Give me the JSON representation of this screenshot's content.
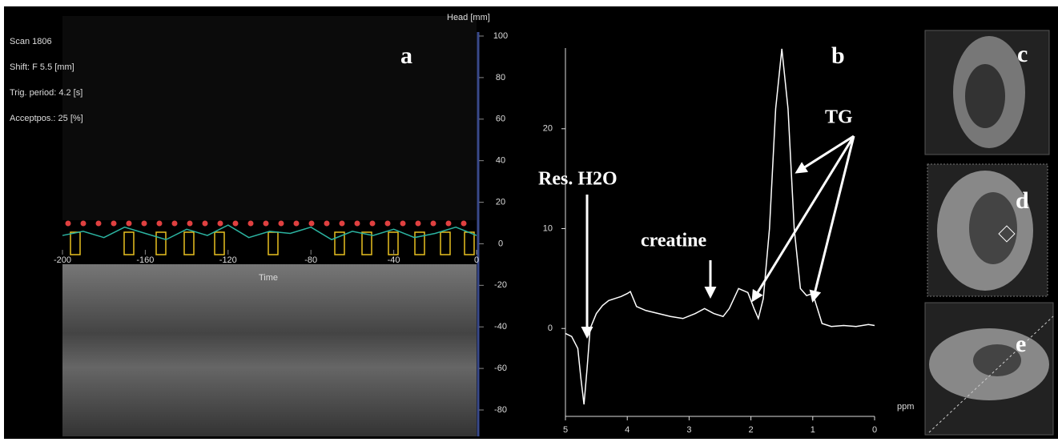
{
  "chart_data": [
    {
      "type": "line",
      "panel_label": "a",
      "info": [
        "Scan 1806",
        "Shift: F 5.5 [mm]",
        "Trig. period: 4.2 [s]",
        "Acceptpos.: 25 [%]"
      ],
      "y_label": "Head [mm]",
      "x_label": "Time",
      "xlim": [
        -200,
        0
      ],
      "xticks": [
        -200,
        -160,
        -120,
        -80,
        -40,
        0
      ],
      "ylim": [
        -80,
        100
      ],
      "yticks": [
        100,
        80,
        60,
        40,
        20,
        0,
        -20,
        -40,
        -60,
        -80
      ],
      "series": [
        {
          "color": "#2bb3a0",
          "x": [
            -200,
            -190,
            -180,
            -170,
            -160,
            -150,
            -140,
            -130,
            -120,
            -110,
            -100,
            -90,
            -80,
            -70,
            -60,
            -50,
            -40,
            -30,
            -20,
            -10,
            0
          ],
          "values": [
            4,
            6,
            3,
            8,
            5,
            2,
            7,
            4,
            9,
            3,
            6,
            5,
            8,
            2,
            6,
            4,
            7,
            3,
            5,
            8,
            4
          ]
        }
      ]
    },
    {
      "type": "line",
      "panel_label": "b",
      "x_label": "ppm",
      "xlim": [
        5,
        0
      ],
      "xticks": [
        5,
        4,
        3,
        2,
        1,
        0
      ],
      "ylim": [
        -8.8,
        28
      ],
      "yticks": [
        0,
        10,
        20
      ],
      "annotations": [
        "Res. H2O",
        "creatine",
        "TG"
      ],
      "color": "#ffffff",
      "x": [
        5.0,
        4.9,
        4.8,
        4.75,
        4.7,
        4.65,
        4.6,
        4.5,
        4.4,
        4.3,
        4.2,
        4.1,
        4.0,
        3.95,
        3.85,
        3.7,
        3.5,
        3.3,
        3.1,
        2.9,
        2.75,
        2.6,
        2.45,
        2.35,
        2.2,
        2.05,
        1.95,
        1.88,
        1.8,
        1.7,
        1.6,
        1.5,
        1.4,
        1.3,
        1.2,
        1.1,
        1.0,
        0.95,
        0.85,
        0.7,
        0.5,
        0.3,
        0.1,
        0.0
      ],
      "values": [
        -0.5,
        -0.8,
        -2,
        -5,
        -7.6,
        -4,
        0,
        1.5,
        2.3,
        2.8,
        3,
        3.2,
        3.5,
        3.7,
        2.2,
        1.8,
        1.5,
        1.2,
        1.0,
        1.5,
        2.0,
        1.5,
        1.2,
        2.0,
        4.0,
        3.6,
        2.0,
        1.0,
        3,
        10,
        22,
        28,
        22,
        10,
        4,
        3.3,
        3.5,
        2.5,
        0.5,
        0.2,
        0.3,
        0.2,
        0.4,
        0.3
      ]
    }
  ],
  "images": [
    {
      "label": "c"
    },
    {
      "label": "d"
    },
    {
      "label": "e"
    }
  ]
}
